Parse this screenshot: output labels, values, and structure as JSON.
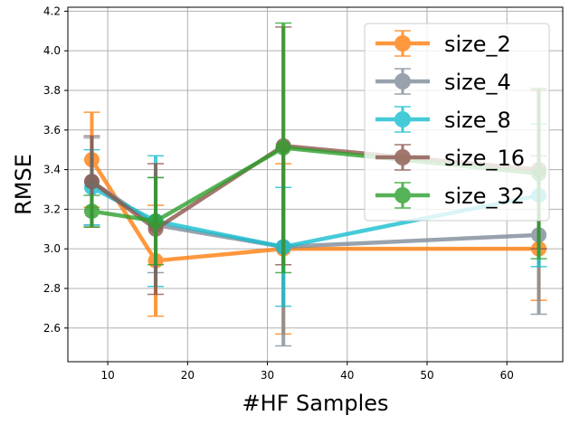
{
  "chart_data": {
    "type": "line",
    "xlabel": "#HF Samples",
    "ylabel": "RMSE",
    "xlim": [
      5,
      67
    ],
    "ylim": [
      2.43,
      4.22
    ],
    "xticks": [
      10,
      20,
      30,
      40,
      50,
      60
    ],
    "yticks": [
      2.6,
      2.8,
      3.0,
      3.2,
      3.4,
      3.6,
      3.8,
      4.0,
      4.2
    ],
    "grid": true,
    "legend_position": "top-right",
    "x": [
      8,
      16,
      32,
      64
    ],
    "series": [
      {
        "name": "size_2",
        "color": "#ff7f0e",
        "values": [
          3.45,
          2.94,
          3.0,
          3.0
        ],
        "errors": [
          0.24,
          0.28,
          0.43,
          0.26
        ]
      },
      {
        "name": "size_4",
        "color": "#7f8c9a",
        "values": [
          3.34,
          3.12,
          3.01,
          3.07
        ],
        "errors": [
          0.22,
          0.24,
          0.5,
          0.4
        ]
      },
      {
        "name": "size_8",
        "color": "#17becf",
        "values": [
          3.31,
          3.14,
          3.01,
          3.27
        ],
        "errors": [
          0.19,
          0.33,
          0.3,
          0.36
        ]
      },
      {
        "name": "size_16",
        "color": "#8c564b",
        "values": [
          3.34,
          3.1,
          3.52,
          3.4
        ],
        "errors": [
          0.23,
          0.33,
          0.6,
          0.4
        ]
      },
      {
        "name": "size_32",
        "color": "#2ca02c",
        "values": [
          3.19,
          3.14,
          3.51,
          3.38
        ],
        "errors": [
          0.08,
          0.22,
          0.63,
          0.43
        ]
      }
    ]
  }
}
